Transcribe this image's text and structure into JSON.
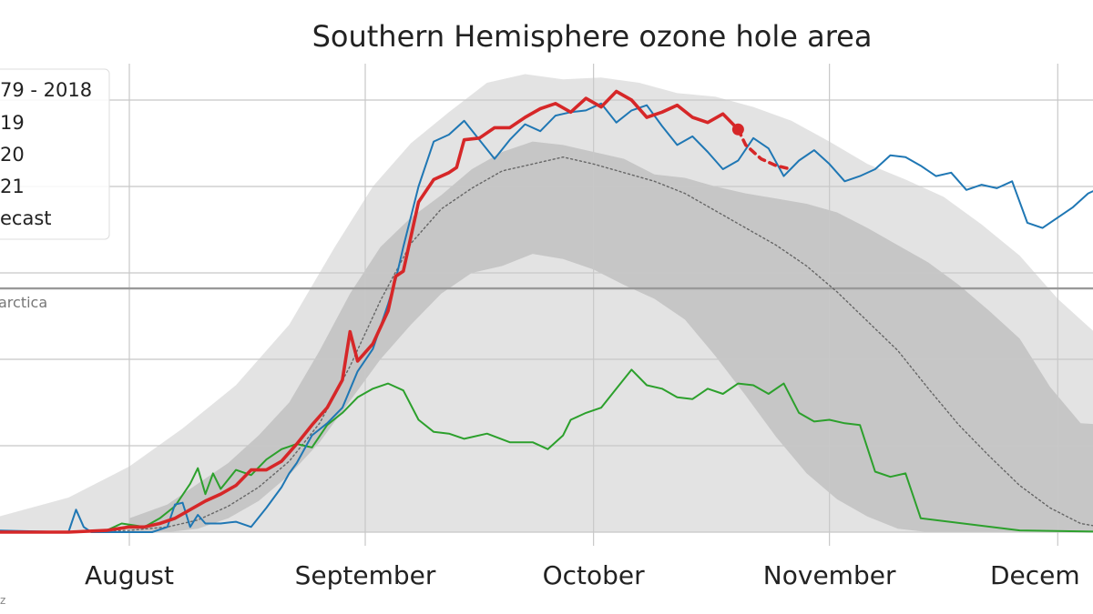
{
  "chart_data": {
    "type": "line",
    "title": "Southern Hemisphere ozone hole area",
    "x_ticks": [
      "August",
      "September",
      "October",
      "November",
      "Decem"
    ],
    "x_unit": "day of year",
    "ylim": [
      0,
      26
    ],
    "grid": true,
    "legend_position": "top-left",
    "legend_entries": [
      "79 - 2018",
      "19",
      "20",
      "21",
      "ecast"
    ],
    "reference_line": {
      "label": "arctica",
      "y": 14.1
    },
    "footnote": "z",
    "colors": {
      "y2021": "#d62728",
      "y2020": "#1f77b4",
      "y2019": "#2ca02c",
      "mean": "#666666",
      "band_outer": "#e3e3e3",
      "band_inner": "#c6c6c6",
      "refline": "#999999"
    },
    "band_outer": {
      "x": [
        195,
        205,
        213,
        220,
        227,
        234,
        240,
        245,
        250,
        255,
        260,
        265,
        270,
        275,
        280,
        285,
        290,
        295,
        300,
        305,
        310,
        315,
        320,
        325,
        330,
        335,
        340,
        345,
        350
      ],
      "low": [
        0,
        0,
        0,
        0,
        0,
        0,
        0,
        0,
        0,
        0,
        0,
        0,
        0,
        0,
        0,
        0,
        0,
        0,
        0,
        0,
        0,
        0,
        0,
        0,
        0,
        0,
        0,
        0,
        0
      ],
      "high": [
        0.8,
        2.0,
        3.8,
        6.0,
        8.5,
        12.0,
        16.5,
        20.0,
        22.5,
        24.3,
        26.0,
        26.5,
        26.2,
        26.3,
        26.0,
        25.4,
        25.2,
        24.6,
        23.8,
        22.6,
        21.3,
        20.4,
        19.4,
        17.8,
        16.0,
        13.5,
        11.5,
        10.5,
        10.0
      ]
    },
    "band_inner": {
      "x": [
        213,
        218,
        222,
        226,
        230,
        234,
        238,
        242,
        246,
        250,
        254,
        258,
        262,
        266,
        270,
        274,
        278,
        282,
        286,
        290,
        294,
        298,
        302,
        306,
        310,
        314,
        318,
        322,
        326,
        330,
        334,
        338,
        342,
        346,
        350
      ],
      "low": [
        0,
        0,
        0.2,
        0.8,
        1.8,
        3.3,
        5.2,
        7.6,
        10.0,
        12.0,
        13.8,
        15.0,
        15.4,
        16.1,
        15.8,
        15.2,
        14.3,
        13.5,
        12.3,
        10.2,
        7.9,
        5.5,
        3.4,
        1.9,
        0.9,
        0.2,
        0,
        0,
        0,
        0,
        0,
        0,
        0,
        0,
        0
      ],
      "high": [
        0.8,
        1.6,
        2.8,
        4.0,
        5.6,
        7.5,
        10.5,
        13.8,
        16.5,
        18.2,
        19.5,
        21.0,
        22.0,
        22.6,
        22.4,
        22.0,
        21.6,
        20.7,
        20.5,
        20.0,
        19.6,
        19.3,
        19.0,
        18.5,
        17.6,
        16.6,
        15.6,
        14.3,
        12.8,
        11.2,
        8.4,
        6.3,
        6.2,
        5.8,
        5.3
      ]
    },
    "series": [
      {
        "key": "y2019",
        "x": [
          195,
          200,
          205,
          210,
          212,
          215,
          217,
          219,
          221,
          222,
          223,
          224,
          225,
          227,
          229,
          231,
          233,
          235,
          237,
          239,
          241,
          243,
          245,
          247,
          249,
          251,
          253,
          255,
          257,
          260,
          263,
          266,
          268,
          270,
          271,
          273,
          275,
          277,
          279,
          281,
          283,
          285,
          287,
          289,
          291,
          293,
          295,
          297,
          299,
          301,
          303,
          305,
          307,
          309,
          311,
          313,
          315,
          317,
          330,
          345,
          350
        ],
        "y": [
          0,
          0,
          0,
          0.1,
          0.5,
          0.3,
          0.8,
          1.5,
          2.8,
          3.7,
          2.2,
          3.4,
          2.5,
          3.6,
          3.3,
          4.2,
          4.8,
          5.1,
          4.9,
          6.2,
          6.9,
          7.8,
          8.3,
          8.6,
          8.2,
          6.5,
          5.8,
          5.7,
          5.4,
          5.7,
          5.2,
          5.2,
          4.8,
          5.6,
          6.5,
          6.9,
          7.2,
          8.3,
          9.4,
          8.5,
          8.3,
          7.8,
          7.7,
          8.3,
          8.0,
          8.6,
          8.5,
          8.0,
          8.6,
          6.9,
          6.4,
          6.5,
          6.3,
          6.2,
          3.5,
          3.2,
          3.4,
          0.8,
          0.1,
          0,
          0
        ]
      },
      {
        "key": "y2020",
        "x": [
          195,
          205,
          206,
          207,
          208,
          212,
          216,
          218,
          219,
          220,
          221,
          222,
          223,
          225,
          227,
          229,
          231,
          233,
          234,
          235,
          237,
          239,
          241,
          243,
          245,
          247,
          248,
          249,
          251,
          253,
          255,
          257,
          259,
          261,
          263,
          265,
          267,
          269,
          271,
          273,
          275,
          277,
          279,
          281,
          283,
          285,
          287,
          289,
          291,
          293,
          295,
          297,
          299,
          301,
          303,
          305,
          307,
          309,
          311,
          313,
          315,
          317,
          319,
          321,
          323,
          325,
          327,
          329,
          331,
          333,
          335,
          337,
          339,
          341,
          343,
          345,
          347,
          349,
          350
        ],
        "y": [
          0.1,
          0,
          1.3,
          0.3,
          0,
          0,
          0,
          0.3,
          1.6,
          1.7,
          0.3,
          1.0,
          0.5,
          0.5,
          0.6,
          0.3,
          1.4,
          2.6,
          3.4,
          4.0,
          5.6,
          6.3,
          7.2,
          9.3,
          10.6,
          13.2,
          14.6,
          16.5,
          20.0,
          22.6,
          23.0,
          23.8,
          22.7,
          21.6,
          22.7,
          23.6,
          23.2,
          24.1,
          24.3,
          24.4,
          24.8,
          23.7,
          24.4,
          24.7,
          23.5,
          22.4,
          22.9,
          22.0,
          21.0,
          21.5,
          22.8,
          22.2,
          20.6,
          21.5,
          22.1,
          21.3,
          20.3,
          20.6,
          21.0,
          21.8,
          21.7,
          21.2,
          20.6,
          20.8,
          19.8,
          20.1,
          19.9,
          20.3,
          17.9,
          17.6,
          18.2,
          18.8,
          19.6,
          20.0,
          20.5,
          20.3,
          19.9,
          20.2,
          20.1
        ]
      },
      {
        "key": "y2021",
        "x": [
          195,
          205,
          210,
          213,
          215,
          217,
          219,
          221,
          223,
          225,
          227,
          229,
          231,
          233,
          235,
          237,
          239,
          241,
          242,
          243,
          245,
          247,
          248,
          249,
          251,
          253,
          255,
          256,
          257,
          259,
          261,
          263,
          265,
          267,
          269,
          271,
          273,
          275,
          277,
          279,
          281,
          283,
          285,
          287,
          289,
          291,
          293
        ],
        "y": [
          0,
          0,
          0.1,
          0.3,
          0.3,
          0.5,
          0.8,
          1.3,
          1.8,
          2.2,
          2.7,
          3.6,
          3.6,
          4.1,
          5.1,
          6.2,
          7.2,
          8.8,
          11.6,
          9.9,
          10.9,
          12.8,
          14.8,
          15.1,
          19.1,
          20.4,
          20.8,
          21.1,
          22.7,
          22.8,
          23.4,
          23.4,
          24.0,
          24.5,
          24.8,
          24.3,
          25.1,
          24.6,
          25.5,
          25.0,
          24.0,
          24.3,
          24.7,
          24.0,
          23.7,
          24.2,
          23.3
        ]
      },
      {
        "key": "forecast",
        "x": [
          293,
          294,
          296,
          298,
          300
        ],
        "y": [
          23.3,
          22.4,
          21.6,
          21.2,
          21.0
        ]
      },
      {
        "key": "mean",
        "x": [
          205,
          213,
          218,
          222,
          226,
          230,
          234,
          238,
          242,
          246,
          250,
          254,
          258,
          262,
          266,
          270,
          274,
          278,
          282,
          286,
          290,
          294,
          298,
          302,
          306,
          310,
          314,
          318,
          322,
          326,
          330,
          334,
          338,
          342,
          346,
          350
        ],
        "y": [
          0,
          0.1,
          0.3,
          0.7,
          1.5,
          2.6,
          4.1,
          6.3,
          9.6,
          13.4,
          16.7,
          18.7,
          19.9,
          20.9,
          21.3,
          21.7,
          21.3,
          20.8,
          20.3,
          19.6,
          18.6,
          17.6,
          16.6,
          15.4,
          13.9,
          12.2,
          10.5,
          8.3,
          6.2,
          4.4,
          2.7,
          1.4,
          0.5,
          0.2,
          0,
          0
        ]
      }
    ]
  }
}
